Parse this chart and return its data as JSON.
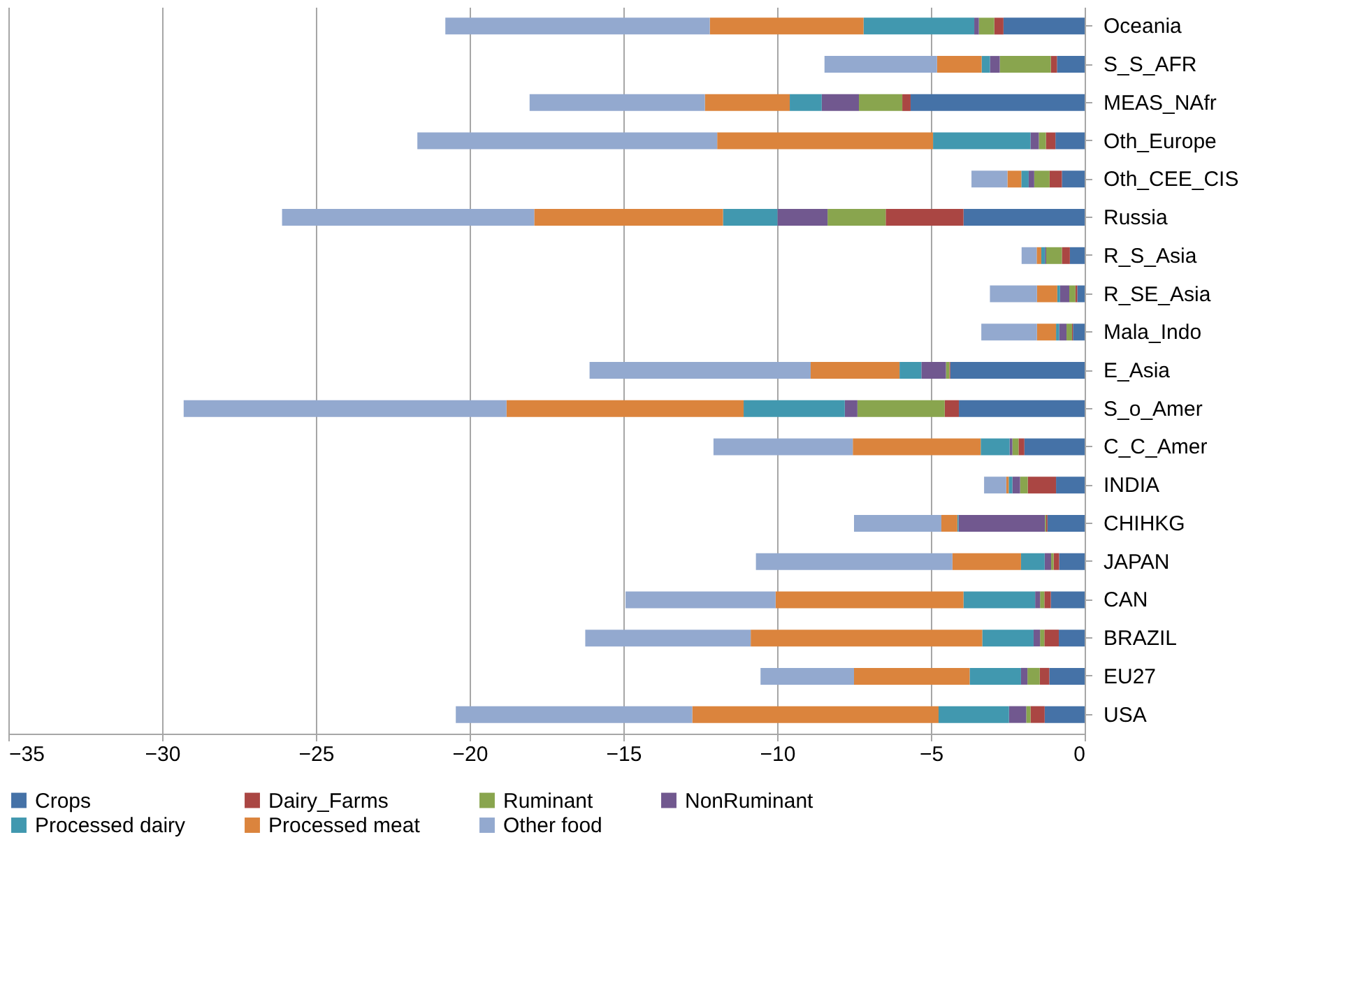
{
  "chart_data": {
    "type": "bar",
    "orientation": "horizontal",
    "stacked": true,
    "categories": [
      "Oceania",
      "S_S_AFR",
      "MEAS_NAfr",
      "Oth_Europe",
      "Oth_CEE_CIS",
      "Russia",
      "R_S_Asia",
      "R_SE_Asia",
      "Mala_Indo",
      "E_Asia",
      "S_o_Amer",
      "C_C_Amer",
      "INDIA",
      "CHIHKG",
      "JAPAN",
      "CAN",
      "BRAZIL",
      "EU27",
      "USA"
    ],
    "series": [
      {
        "name": "Crops",
        "color": "#4572a7",
        "values": [
          -2.64,
          -0.9,
          -5.66,
          -0.95,
          -0.74,
          -3.94,
          -0.48,
          -0.24,
          -0.38,
          -4.37,
          -4.09,
          -1.96,
          -0.93,
          -1.21,
          -0.83,
          -1.1,
          -0.84,
          -1.15,
          -1.3
        ]
      },
      {
        "name": "Dairy_Farms",
        "color": "#aa4643",
        "values": [
          -0.3,
          -0.2,
          -0.27,
          -0.31,
          -0.4,
          -2.53,
          -0.26,
          -0.06,
          -0.03,
          -0.03,
          -0.46,
          -0.19,
          -0.92,
          -0.04,
          -0.18,
          -0.21,
          -0.47,
          -0.31,
          -0.46
        ]
      },
      {
        "name": "Ruminant",
        "color": "#89a54e",
        "values": [
          -0.5,
          -1.66,
          -1.41,
          -0.23,
          -0.5,
          -1.89,
          -0.51,
          -0.2,
          -0.18,
          -0.11,
          -2.84,
          -0.2,
          -0.25,
          -0.04,
          -0.08,
          -0.14,
          -0.14,
          -0.4,
          -0.14
        ]
      },
      {
        "name": "NonRuminant",
        "color": "#71588f",
        "values": [
          -0.15,
          -0.32,
          -1.21,
          -0.27,
          -0.18,
          -1.63,
          -0.04,
          -0.3,
          -0.24,
          -0.8,
          -0.41,
          -0.09,
          -0.25,
          -2.81,
          -0.21,
          -0.16,
          -0.21,
          -0.21,
          -0.56
        ]
      },
      {
        "name": "Processed dairy",
        "color": "#4198af",
        "values": [
          -3.6,
          -0.27,
          -1.04,
          -3.17,
          -0.24,
          -1.77,
          -0.12,
          -0.09,
          -0.1,
          -0.71,
          -3.29,
          -0.94,
          -0.12,
          -0.04,
          -0.77,
          -2.33,
          -1.67,
          -1.67,
          -2.29
        ]
      },
      {
        "name": "Processed meat",
        "color": "#db843d",
        "values": [
          -5.0,
          -1.45,
          -2.76,
          -7.02,
          -0.45,
          -6.14,
          -0.15,
          -0.66,
          -0.62,
          -2.89,
          -7.71,
          -4.16,
          -0.08,
          -0.52,
          -2.23,
          -6.11,
          -7.53,
          -3.76,
          -8.01
        ]
      },
      {
        "name": "Other food",
        "color": "#93a9cf",
        "values": [
          -8.6,
          -3.66,
          -5.7,
          -9.75,
          -1.17,
          -8.2,
          -0.49,
          -1.53,
          -1.81,
          -7.19,
          -10.5,
          -4.53,
          -0.72,
          -2.84,
          -6.39,
          -4.88,
          -5.38,
          -3.04,
          -7.69
        ]
      }
    ],
    "xlim": [
      -35,
      0
    ],
    "xticks": [
      -35,
      -30,
      -25,
      -20,
      -15,
      -10,
      -5,
      0
    ],
    "grid": "x",
    "legend": "bottom"
  }
}
